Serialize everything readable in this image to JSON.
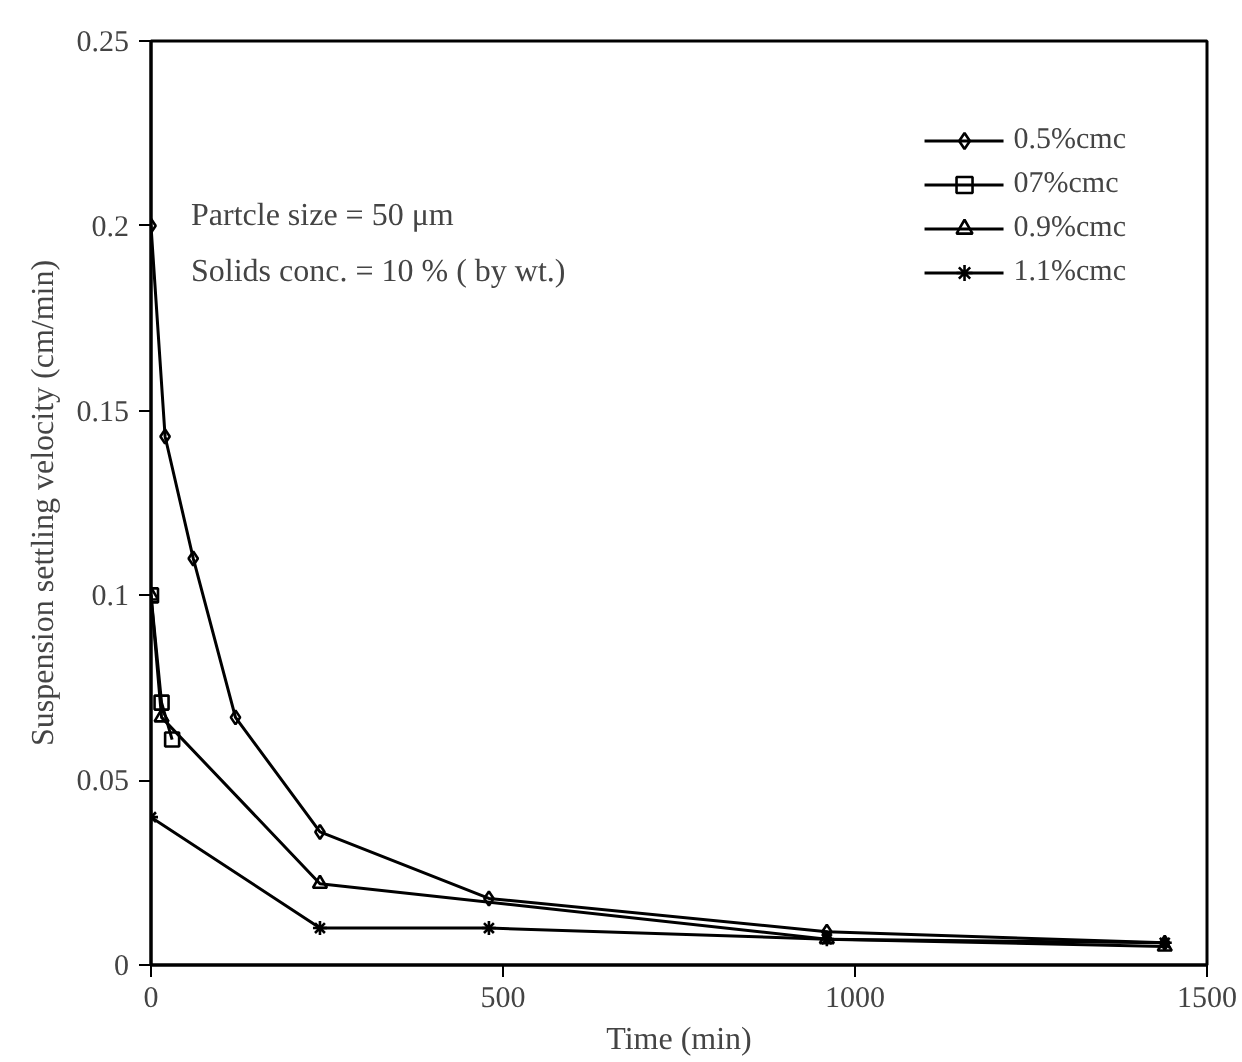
{
  "chart_data": {
    "type": "line",
    "xlabel": "Time (min)",
    "ylabel": "Suspension settling velocity (cm/min)",
    "annotations": [
      "Partcle size = 50 μm",
      "Solids conc. = 10 % ( by wt.)"
    ],
    "xlim": [
      0,
      1500
    ],
    "xticks": [
      0,
      500,
      1000,
      1500
    ],
    "ylim": [
      0,
      0.25
    ],
    "yticks": [
      0,
      0.05,
      0.1,
      0.15,
      0.2,
      0.25
    ],
    "grid": false,
    "legend": "top right",
    "series": [
      {
        "name": "0.5%cmc",
        "color": "#000000",
        "marker": "diamond",
        "x": [
          0,
          20,
          60,
          120,
          240,
          480,
          960,
          1440
        ],
        "values": [
          0.2,
          0.143,
          0.11,
          0.067,
          0.036,
          0.018,
          0.009,
          0.006
        ]
      },
      {
        "name": "07%cmc",
        "color": "#000000",
        "marker": "square",
        "x": [
          0,
          15,
          30
        ],
        "values": [
          0.1,
          0.071,
          0.061
        ]
      },
      {
        "name": "0.9%cmc",
        "color": "#000000",
        "marker": "triangle",
        "x": [
          0,
          15,
          240,
          960,
          1440
        ],
        "values": [
          0.1,
          0.067,
          0.022,
          0.007,
          0.005
        ]
      },
      {
        "name": "1.1%cmc",
        "color": "#000000",
        "marker": "cross",
        "x": [
          0,
          240,
          480,
          960,
          1440
        ],
        "values": [
          0.04,
          0.01,
          0.01,
          0.007,
          0.006
        ]
      }
    ]
  }
}
